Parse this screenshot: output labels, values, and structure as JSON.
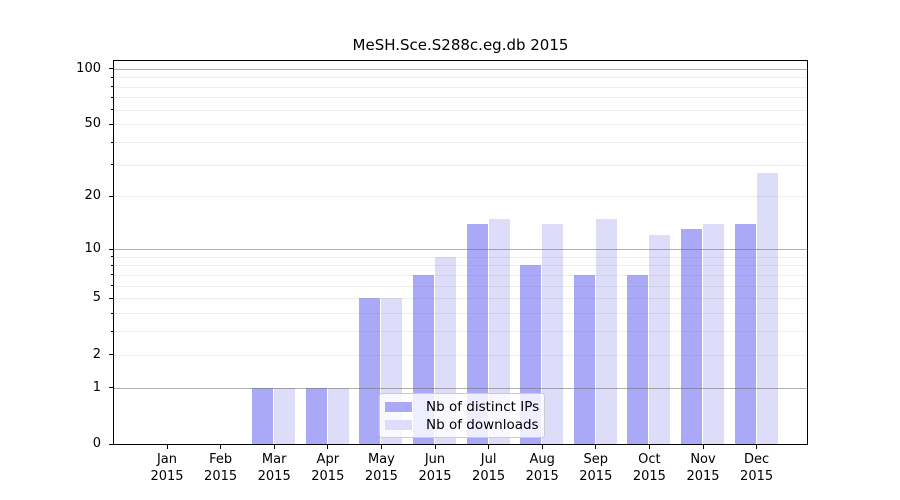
{
  "chart_data": {
    "type": "bar",
    "title": "MeSH.Sce.S288c.eg.db 2015",
    "year": "2015",
    "categories": [
      "Jan",
      "Feb",
      "Mar",
      "Apr",
      "May",
      "Jun",
      "Jul",
      "Aug",
      "Sep",
      "Oct",
      "Nov",
      "Dec"
    ],
    "series": [
      {
        "name": "Nb of distinct IPs",
        "color": "#a9a9f7",
        "values": [
          0,
          0,
          1,
          1,
          5,
          7,
          14,
          8,
          7,
          7,
          13,
          14
        ]
      },
      {
        "name": "Nb of downloads",
        "color": "#ddddfa",
        "values": [
          0,
          0,
          1,
          1,
          5,
          9,
          15,
          14,
          15,
          12,
          14,
          27
        ]
      }
    ],
    "xlabel": "",
    "ylabel": "",
    "yscale": "log1p",
    "ylim": [
      0,
      100
    ],
    "yticks": [
      0,
      1,
      2,
      5,
      10,
      20,
      50,
      100
    ],
    "grid": {
      "on": true,
      "major": [
        1,
        10,
        100
      ],
      "minor": [
        2,
        3,
        4,
        5,
        6,
        7,
        8,
        9,
        20,
        30,
        40,
        50,
        60,
        70,
        80,
        90
      ]
    },
    "legend": {
      "position": "lower center",
      "entries": [
        "Nb of distinct IPs",
        "Nb of downloads"
      ]
    },
    "colors": {
      "axis": "#000000",
      "grid_major": "#9a9a9a",
      "grid_minor": "#e8e8e8",
      "background": "#ffffff"
    }
  }
}
